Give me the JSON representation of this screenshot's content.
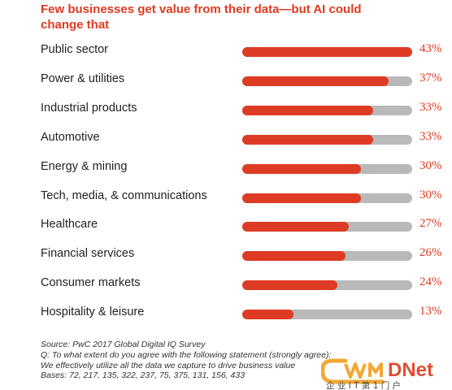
{
  "title": "Few businesses get value from their data—but AI could change that",
  "chart_data": {
    "type": "bar",
    "orientation": "horizontal",
    "title": "Few businesses get value from their data—but AI could change that",
    "xlim": [
      0,
      100
    ],
    "categories": [
      "Public sector",
      "Power & utilities",
      "Industrial products",
      "Automotive",
      "Energy & mining",
      "Tech, media, & communications",
      "Healthcare",
      "Financial services",
      "Consumer markets",
      "Hospitality & leisure"
    ],
    "values": [
      43,
      37,
      33,
      33,
      30,
      30,
      27,
      26,
      24,
      13
    ],
    "value_labels": [
      "43%",
      "37%",
      "33%",
      "33%",
      "30%",
      "30%",
      "27%",
      "26%",
      "24%",
      "13%"
    ],
    "colors": {
      "fill": "#de3b24",
      "track": "#b9b9b9",
      "title": "#e03a20"
    },
    "legend": "none",
    "grid": false
  },
  "footer": {
    "source": "Source: PwC 2017 Global Digital IQ Survey",
    "question": "Q: To what extent do you agree with the following statement (strongly agree):",
    "statement": "We effectively utilize all the data we capture to drive business value",
    "bases": "Bases: 72, 217, 135, 322, 237, 75, 375, 131, 156, 433"
  },
  "watermark": {
    "logo_text": "DNet",
    "subtitle": "企 业 I T 第 1 门 户"
  }
}
